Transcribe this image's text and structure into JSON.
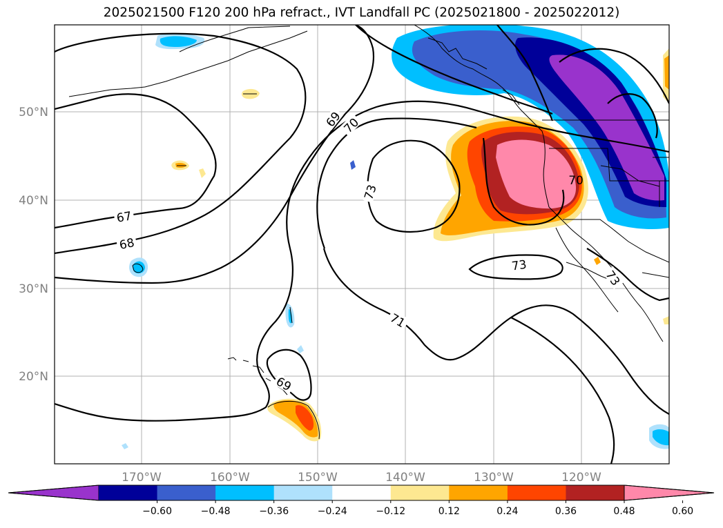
{
  "title": "2025021500 F120 200 hPa refract., IVT Landfall PC (2025021800 - 2025022012)",
  "lon_ticks": [
    "170°W",
    "160°W",
    "150°W",
    "140°W",
    "130°W",
    "120°W"
  ],
  "lat_ticks": [
    "50°N",
    "40°N",
    "30°N",
    "20°N"
  ],
  "contour_labels": [
    "67",
    "68",
    "69",
    "70",
    "73",
    "71",
    "69",
    "73",
    "73",
    "70"
  ],
  "colorbar": {
    "colors": [
      "#9933cc",
      "#000099",
      "#3a5fcd",
      "#00bfff",
      "#afe1fc",
      "#ffffff",
      "#fde891",
      "#ffa500",
      "#ff4500",
      "#b22222",
      "#ff88aa"
    ],
    "tick_labels": [
      "−0.60",
      "−0.48",
      "−0.36",
      "−0.24",
      "−0.12",
      "0.12",
      "0.24",
      "0.36",
      "0.48",
      "0.60"
    ]
  }
}
